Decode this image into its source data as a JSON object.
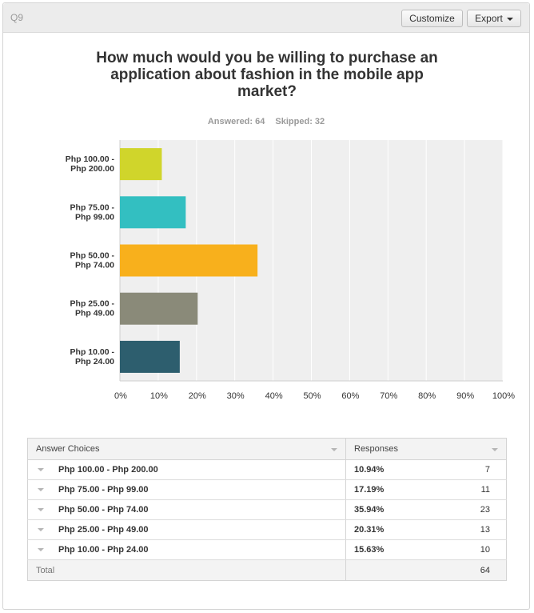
{
  "header": {
    "question_number": "Q9",
    "customize_label": "Customize",
    "export_label": "Export"
  },
  "title": "How much would you be willing to purchase an application about fashion in the mobile app market?",
  "stats": {
    "answered": "Answered: 64",
    "skipped": "Skipped: 32"
  },
  "chart_data": {
    "type": "bar",
    "orientation": "horizontal",
    "categories": [
      "Php 100.00 - Php 200.00",
      "Php 75.00 - Php 99.00",
      "Php 50.00 - Php 74.00",
      "Php 25.00 - Php 49.00",
      "Php 10.00 - Php 24.00"
    ],
    "category_lines": [
      [
        "Php 100.00 -",
        "Php 200.00"
      ],
      [
        "Php 75.00 -",
        "Php 99.00"
      ],
      [
        "Php 50.00 -",
        "Php 74.00"
      ],
      [
        "Php 25.00 -",
        "Php 49.00"
      ],
      [
        "Php 10.00 -",
        "Php 24.00"
      ]
    ],
    "values": [
      10.94,
      17.19,
      35.94,
      20.31,
      15.63
    ],
    "colors": [
      "#d0d52b",
      "#33bfc1",
      "#f8b01c",
      "#8a8a79",
      "#2d5e6e"
    ],
    "xlim": [
      0,
      100
    ],
    "x_ticks": [
      "0%",
      "10%",
      "20%",
      "30%",
      "40%",
      "50%",
      "60%",
      "70%",
      "80%",
      "90%",
      "100%"
    ],
    "grid": true,
    "background": "#efefef"
  },
  "table": {
    "headers": [
      "Answer Choices",
      "Responses"
    ],
    "rows": [
      {
        "choice": "Php 100.00 - Php 200.00",
        "percent": "10.94%",
        "count": "7"
      },
      {
        "choice": "Php 75.00 - Php 99.00",
        "percent": "17.19%",
        "count": "11"
      },
      {
        "choice": "Php 50.00 - Php 74.00",
        "percent": "35.94%",
        "count": "23"
      },
      {
        "choice": "Php 25.00 - Php 49.00",
        "percent": "20.31%",
        "count": "13"
      },
      {
        "choice": "Php 10.00 - Php 24.00",
        "percent": "15.63%",
        "count": "10"
      }
    ],
    "total_label": "Total",
    "total_count": "64"
  }
}
